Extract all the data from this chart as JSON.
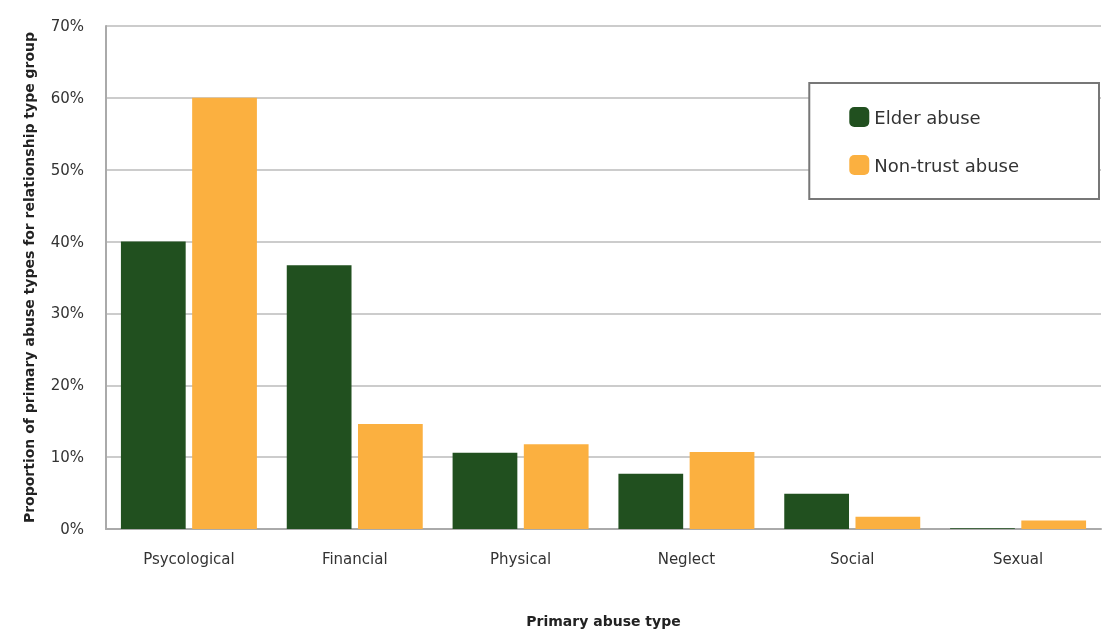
{
  "chart_data": {
    "type": "bar",
    "xlabel": "Primary abuse type",
    "ylabel": "Proportion of primary abuse types for relationship type group",
    "categories": [
      "Psycological",
      "Financial",
      "Physical",
      "Neglect",
      "Social",
      "Sexual"
    ],
    "series": [
      {
        "name": "Elder abuse",
        "color": "#21501f",
        "values": [
          40,
          36.7,
          10.6,
          7.7,
          4.9,
          0.1
        ]
      },
      {
        "name": "Non-trust abuse",
        "color": "#fbb040",
        "values": [
          60,
          14.6,
          11.8,
          10.7,
          1.7,
          1.2
        ]
      }
    ],
    "ylim": [
      0,
      70
    ],
    "yticks": [
      {
        "value": 0,
        "label": "0%"
      },
      {
        "value": 10,
        "label": "10%"
      },
      {
        "value": 20,
        "label": "20%"
      },
      {
        "value": 30,
        "label": "30%"
      },
      {
        "value": 40,
        "label": "40%"
      },
      {
        "value": 50,
        "label": "50%"
      },
      {
        "value": 60,
        "label": "60%"
      },
      {
        "value": 70,
        "label": "70%"
      }
    ],
    "grid": "y",
    "legend": "top right"
  }
}
